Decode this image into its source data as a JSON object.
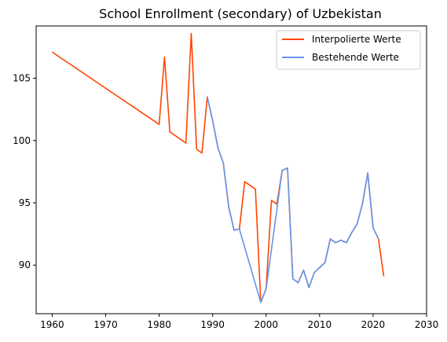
{
  "chart_data": {
    "type": "line",
    "title": "School Enrollment (secondary) of Uzbekistan",
    "xlabel": "",
    "ylabel": "",
    "xlim": [
      1957,
      2030
    ],
    "ylim": [
      86.1,
      109.2
    ],
    "x_ticks": [
      1960,
      1970,
      1980,
      1990,
      2000,
      2010,
      2020,
      2030
    ],
    "y_ticks": [
      90,
      95,
      100,
      105
    ],
    "grid": false,
    "legend_position": "top-right",
    "series": [
      {
        "name": "Interpolierte Werte",
        "color": "#ff4500",
        "points": [
          [
            1960,
            107.1
          ],
          [
            1980,
            101.3
          ],
          [
            1981,
            106.7
          ],
          [
            1982,
            100.7
          ],
          [
            1985,
            99.8
          ],
          [
            1986,
            108.6
          ],
          [
            1987,
            99.3
          ],
          [
            1988,
            99.0
          ],
          [
            1989,
            103.5
          ],
          [
            1990,
            101.6
          ],
          [
            1991,
            99.4
          ],
          [
            1992,
            98.2
          ],
          [
            1993,
            94.7
          ],
          [
            1994,
            92.8
          ],
          [
            1995,
            92.9
          ],
          [
            1996,
            96.7
          ],
          [
            1997,
            96.4
          ],
          [
            1998,
            96.1
          ],
          [
            1999,
            87.0
          ],
          [
            2000,
            88.1
          ],
          [
            2001,
            95.2
          ],
          [
            2002,
            94.9
          ],
          [
            2003,
            97.6
          ],
          [
            2004,
            97.8
          ],
          [
            2005,
            88.9
          ],
          [
            2006,
            88.6
          ],
          [
            2007,
            89.6
          ],
          [
            2008,
            88.2
          ],
          [
            2009,
            89.4
          ],
          [
            2010,
            89.8
          ],
          [
            2011,
            90.2
          ],
          [
            2012,
            92.1
          ],
          [
            2013,
            91.8
          ],
          [
            2014,
            92.0
          ],
          [
            2015,
            91.8
          ],
          [
            2016,
            92.6
          ],
          [
            2017,
            93.3
          ],
          [
            2018,
            94.9
          ],
          [
            2019,
            97.4
          ],
          [
            2020,
            93.0
          ],
          [
            2021,
            92.1
          ],
          [
            2022,
            89.1
          ]
        ]
      },
      {
        "name": "Bestehende Werte",
        "color": "#6495ed",
        "points": [
          [
            1989,
            103.5
          ],
          [
            1990,
            101.6
          ],
          [
            1991,
            99.4
          ],
          [
            1992,
            98.2
          ],
          [
            1993,
            94.7
          ],
          [
            1994,
            92.8
          ],
          [
            1995,
            92.9
          ],
          [
            1999,
            87.0
          ],
          [
            2000,
            88.1
          ],
          [
            2003,
            97.6
          ],
          [
            2004,
            97.8
          ],
          [
            2005,
            88.9
          ],
          [
            2006,
            88.6
          ],
          [
            2007,
            89.6
          ],
          [
            2008,
            88.2
          ],
          [
            2009,
            89.4
          ],
          [
            2010,
            89.8
          ],
          [
            2011,
            90.2
          ],
          [
            2012,
            92.1
          ],
          [
            2013,
            91.8
          ],
          [
            2014,
            92.0
          ],
          [
            2015,
            91.8
          ],
          [
            2016,
            92.6
          ],
          [
            2017,
            93.3
          ],
          [
            2018,
            94.9
          ],
          [
            2019,
            97.4
          ],
          [
            2020,
            93.0
          ],
          [
            2021,
            92.1
          ]
        ]
      }
    ]
  }
}
